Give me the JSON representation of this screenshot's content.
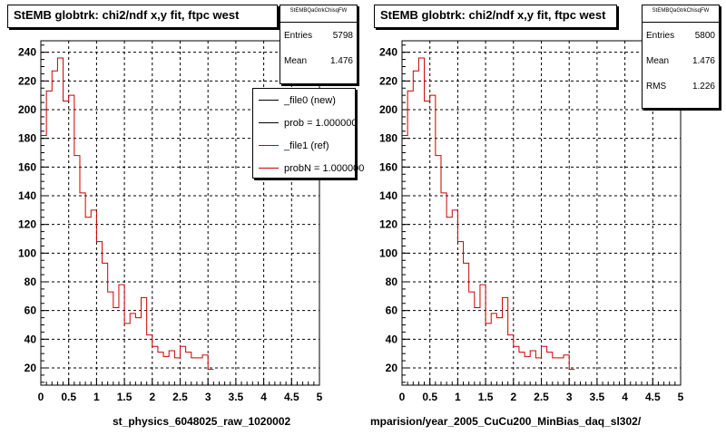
{
  "left_panel": {
    "title": "StEMB globtrk: chi2/ndf x,y fit, ftpc west",
    "stats": {
      "name": "StEMBQaGtrkChisqFW",
      "rows": [
        {
          "label": "Entries",
          "value": "5798"
        },
        {
          "label": "Mean",
          "value": "1.476"
        }
      ]
    },
    "legend": [
      {
        "label": "_file0 (new)",
        "color": "#000000"
      },
      {
        "label": "prob = 1.000000",
        "color": "#000000"
      },
      {
        "label": "_file1 (ref)",
        "color": "#cc0000"
      },
      {
        "label": "probN = 1.000000",
        "color": "#cc0000"
      }
    ],
    "footer": "st_physics_6048025_raw_1020002"
  },
  "right_panel": {
    "title": "StEMB globtrk: chi2/ndf x,y fit, ftpc west",
    "stats": {
      "name": "StEMBQaGtrkChisqFW",
      "rows": [
        {
          "label": "Entries",
          "value": "5800"
        },
        {
          "label": "Mean",
          "value": "1.476"
        },
        {
          "label": "RMS",
          "value": "1.226"
        }
      ]
    },
    "footer": "mparision/year_2005_CuCu200_MinBias_daq_sl302/"
  },
  "chart_data": [
    {
      "type": "step",
      "title": "StEMB globtrk: chi2/ndf x,y fit, ftpc west",
      "xlim": [
        0,
        5
      ],
      "ylim": [
        8,
        248
      ],
      "xticks": [
        "0",
        "0.5",
        "1",
        "1.5",
        "2",
        "2.5",
        "3",
        "3.5",
        "4",
        "4.5",
        "5"
      ],
      "yticks": [
        "20",
        "40",
        "60",
        "80",
        "100",
        "120",
        "140",
        "160",
        "180",
        "200",
        "220",
        "240"
      ],
      "grid": true,
      "bin_width": 0.1,
      "series": [
        {
          "name": "_file1 (ref)",
          "color": "#cc0000",
          "values": [
            182,
            213,
            227,
            236,
            206,
            210,
            168,
            142,
            125,
            130,
            108,
            93,
            73,
            62,
            78,
            51,
            58,
            55,
            69,
            43,
            35,
            31,
            28,
            32,
            27,
            35,
            31,
            27,
            27,
            29,
            19
          ]
        }
      ]
    },
    {
      "type": "step",
      "title": "StEMB globtrk: chi2/ndf x,y fit, ftpc west",
      "xlim": [
        0,
        5
      ],
      "ylim": [
        8,
        248
      ],
      "xticks": [
        "0",
        "0.5",
        "1",
        "1.5",
        "2",
        "2.5",
        "3",
        "3.5",
        "4",
        "4.5",
        "5"
      ],
      "yticks": [
        "20",
        "40",
        "60",
        "80",
        "100",
        "120",
        "140",
        "160",
        "180",
        "200",
        "220",
        "240"
      ],
      "grid": true,
      "bin_width": 0.1,
      "series": [
        {
          "name": "_file1 (ref)",
          "color": "#cc0000",
          "values": [
            182,
            213,
            227,
            236,
            206,
            210,
            168,
            142,
            125,
            130,
            108,
            93,
            73,
            62,
            78,
            51,
            58,
            55,
            69,
            43,
            35,
            31,
            28,
            32,
            27,
            35,
            31,
            27,
            27,
            29,
            19
          ]
        }
      ]
    }
  ]
}
